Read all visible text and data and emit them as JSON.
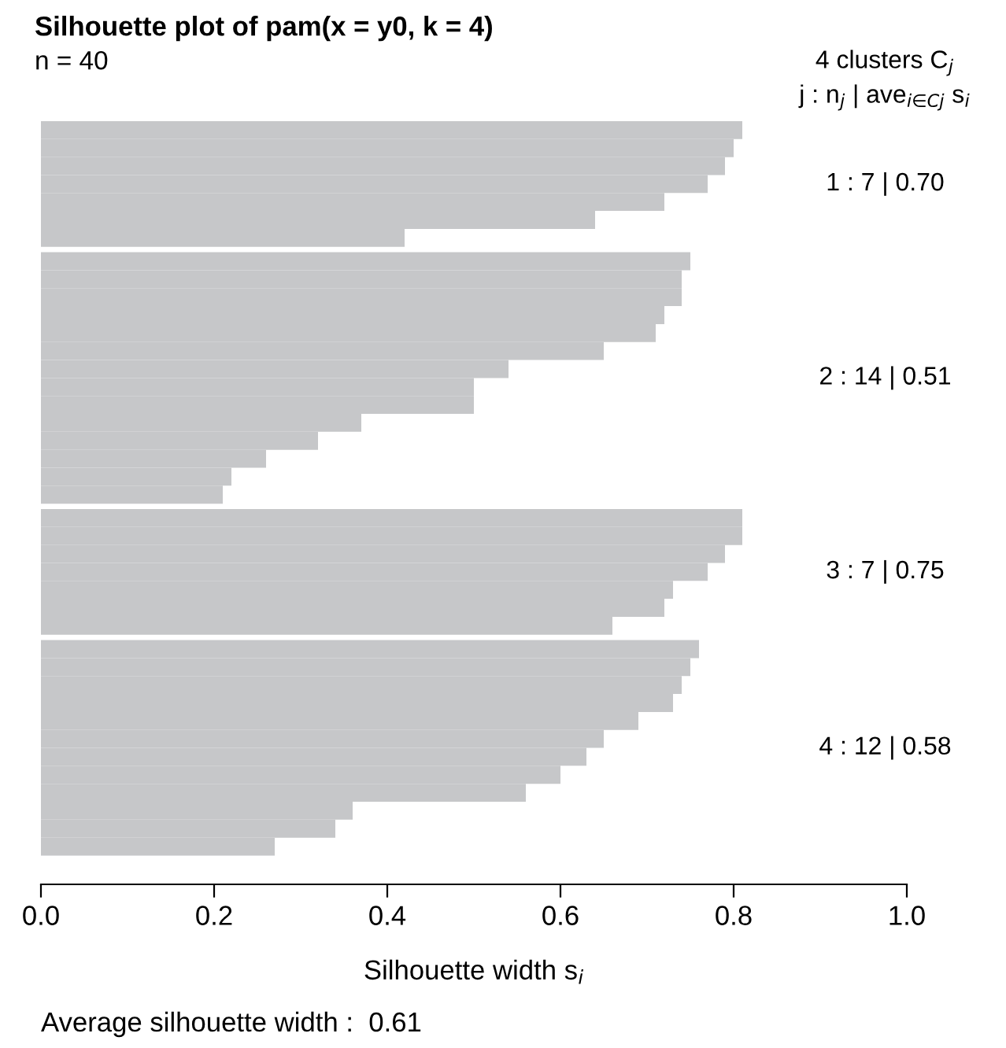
{
  "chart_data": {
    "type": "bar",
    "orientation": "horizontal",
    "title": "Silhouette plot of pam(x = y0, k = 4)",
    "subtitle": "n = 40",
    "xlabel": "Silhouette width s$_{i}$",
    "legend_title": "4 clusters C$_{j}$\nj : n$_{j}$ | ave$_{i∈Cj}$ s$_{i}$",
    "annotations": [
      "Average silhouette width :  0.61"
    ],
    "categories": [
      null,
      null,
      null,
      null,
      null,
      null,
      null,
      null,
      null,
      null,
      null,
      null,
      null,
      null,
      null,
      null,
      null,
      null,
      null,
      null,
      null,
      null,
      null,
      null,
      null,
      null,
      null,
      null,
      null,
      null,
      null,
      null,
      null,
      null,
      null,
      null,
      null,
      null,
      null,
      null
    ],
    "series": [
      {
        "name": "1 : 7 | 0.70",
        "color": "#c6c7c9",
        "values": [
          0.81,
          0.8,
          0.79,
          0.77,
          0.72,
          0.64,
          0.42,
          null,
          null,
          null,
          null,
          null,
          null,
          null,
          null,
          null,
          null,
          null,
          null,
          null,
          null,
          null,
          null,
          null,
          null,
          null,
          null,
          null,
          null,
          null,
          null,
          null,
          null,
          null,
          null,
          null,
          null,
          null,
          null,
          null
        ]
      },
      {
        "name": "2 : 14 | 0.51",
        "color": "#c6c7c9",
        "values": [
          null,
          null,
          null,
          null,
          null,
          null,
          null,
          0.75,
          0.74,
          0.74,
          0.72,
          0.71,
          0.65,
          0.54,
          0.5,
          0.5,
          0.37,
          0.32,
          0.26,
          0.22,
          0.21,
          null,
          null,
          null,
          null,
          null,
          null,
          null,
          null,
          null,
          null,
          null,
          null,
          null,
          null,
          null,
          null,
          null,
          null,
          null
        ]
      },
      {
        "name": "3 : 7 | 0.75",
        "color": "#c6c7c9",
        "values": [
          null,
          null,
          null,
          null,
          null,
          null,
          null,
          null,
          null,
          null,
          null,
          null,
          null,
          null,
          null,
          null,
          null,
          null,
          null,
          null,
          null,
          0.81,
          0.81,
          0.79,
          0.77,
          0.73,
          0.72,
          0.66,
          null,
          null,
          null,
          null,
          null,
          null,
          null,
          null,
          null,
          null,
          null,
          null
        ]
      },
      {
        "name": "4 : 12 | 0.58",
        "color": "#c6c7c9",
        "values": [
          null,
          null,
          null,
          null,
          null,
          null,
          null,
          null,
          null,
          null,
          null,
          null,
          null,
          null,
          null,
          null,
          null,
          null,
          null,
          null,
          null,
          null,
          null,
          null,
          null,
          null,
          null,
          null,
          0.76,
          0.75,
          0.74,
          0.73,
          0.69,
          0.65,
          0.63,
          0.6,
          0.56,
          0.36,
          0.34,
          0.27
        ]
      }
    ],
    "stacked": true,
    "xlim": [
      0,
      1
    ],
    "xticks": [
      {
        "value": 0,
        "label": "0.0"
      },
      0.2,
      0.4,
      0.6,
      0.8,
      {
        "value": 1,
        "label": "1.0"
      }
    ],
    "tick_labels": "x",
    "grid": false
  }
}
